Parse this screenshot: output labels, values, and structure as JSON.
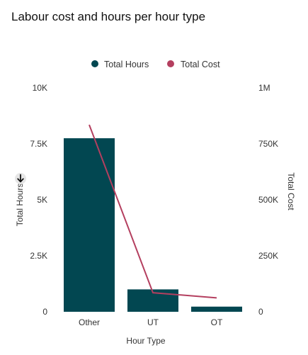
{
  "title": "Labour cost and hours per hour type",
  "colors": {
    "hours": "#024751",
    "cost": "#b43f5f",
    "sort_icon_bg": "#e6e6e6"
  },
  "icons": {
    "sort": "sort-descending-arrow-icon"
  },
  "chart_data": {
    "type": "bar",
    "categories": [
      "Other",
      "UT",
      "OT"
    ],
    "series": [
      {
        "name": "Total Hours",
        "type": "bar",
        "axis": "left",
        "values": [
          7750,
          1000,
          230
        ]
      },
      {
        "name": "Total Cost",
        "type": "line",
        "axis": "right",
        "values": [
          835000,
          85000,
          62000
        ]
      }
    ],
    "xlabel": "Hour Type",
    "ylabel": "Total Hours",
    "y2label": "Total Cost",
    "ylim": [
      0,
      10000
    ],
    "y2lim": [
      0,
      1000000
    ],
    "yticks": [
      "0",
      "2.5K",
      "5K",
      "7.5K",
      "10K"
    ],
    "y2ticks": [
      "0",
      "250K",
      "500K",
      "750K",
      "1M"
    ],
    "legend": {
      "position": "top-center",
      "items": [
        "Total Hours",
        "Total Cost"
      ]
    },
    "grid": false
  }
}
